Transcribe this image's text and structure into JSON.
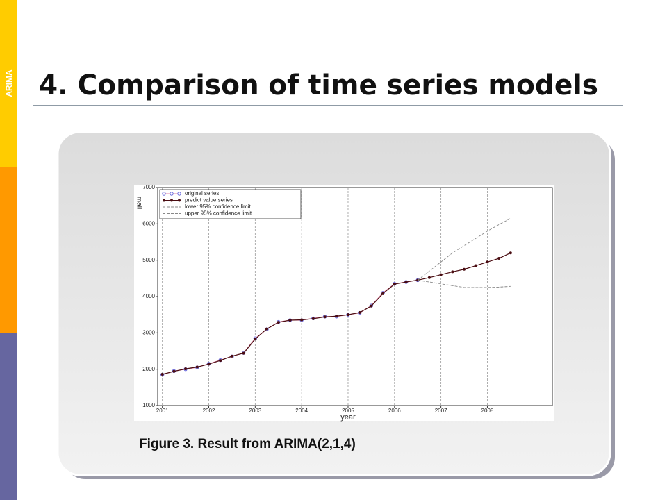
{
  "side_label": "ARIMA",
  "title": "4. Comparison of time series models",
  "caption": "Figure 3. Result from ARIMA(2,1,4)",
  "chart_data": {
    "type": "line",
    "xlabel": "year",
    "ylabel": "mall",
    "x": [
      2001,
      2001.25,
      2001.5,
      2001.75,
      2002,
      2002.25,
      2002.5,
      2002.75,
      2003,
      2003.25,
      2003.5,
      2003.75,
      2004,
      2004.25,
      2004.5,
      2004.75,
      2005,
      2005.25,
      2005.5,
      2005.75,
      2006,
      2006.25,
      2006.5,
      2006.75,
      2007,
      2007.25,
      2007.5,
      2007.75,
      2008,
      2008.25,
      2008.5
    ],
    "series": [
      {
        "name": "original series",
        "color": "#6a6adf",
        "line_color": "#e08aa8",
        "marker": "circle-open",
        "dashed": false,
        "values": [
          1850,
          1950,
          2000,
          2050,
          2150,
          2250,
          2350,
          2450,
          2850,
          3100,
          3300,
          3350,
          3350,
          3400,
          3450,
          3450,
          3500,
          3550,
          3750,
          4100,
          4350,
          4400,
          4450,
          null,
          null,
          null,
          null,
          null,
          null,
          null,
          null
        ]
      },
      {
        "name": "predict value series",
        "color": "#4a0d12",
        "line_color": "#4a0d12",
        "marker": "dot",
        "dashed": false,
        "values": [
          1860,
          1940,
          2010,
          2060,
          2140,
          2240,
          2360,
          2440,
          2830,
          3110,
          3290,
          3350,
          3360,
          3390,
          3440,
          3460,
          3500,
          3560,
          3740,
          4080,
          4340,
          4400,
          4450,
          4520,
          4600,
          4680,
          4750,
          4850,
          4950,
          5050,
          5200
        ]
      },
      {
        "name": "lower 95% confidence limit",
        "color": "#888888",
        "line_color": "#888888",
        "marker": "none",
        "dashed": true,
        "values": [
          null,
          null,
          null,
          null,
          null,
          null,
          null,
          null,
          null,
          null,
          null,
          null,
          null,
          null,
          null,
          null,
          null,
          null,
          null,
          null,
          null,
          null,
          4450,
          4400,
          4350,
          4300,
          4250,
          4250,
          4250,
          4260,
          4280
        ]
      },
      {
        "name": "upper 95% confidence limit",
        "color": "#888888",
        "line_color": "#888888",
        "marker": "none",
        "dashed": true,
        "values": [
          null,
          null,
          null,
          null,
          null,
          null,
          null,
          null,
          null,
          null,
          null,
          null,
          null,
          null,
          null,
          null,
          null,
          null,
          null,
          null,
          null,
          null,
          4450,
          4700,
          4950,
          5200,
          5400,
          5600,
          5800,
          5980,
          6150
        ]
      }
    ],
    "xlim": [
      2000.9,
      2009.4
    ],
    "ylim": [
      1000,
      7000
    ],
    "xticks": [
      2001,
      2002,
      2003,
      2004,
      2005,
      2006,
      2007,
      2008
    ],
    "yticks": [
      1000,
      2000,
      3000,
      4000,
      5000,
      6000,
      7000
    ],
    "x_grid": true,
    "legend": "upper left"
  }
}
